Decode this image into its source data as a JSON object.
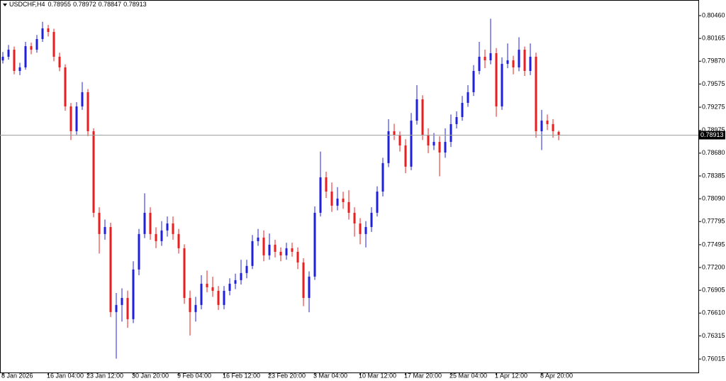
{
  "chart_data": {
    "type": "candlestick",
    "symbol": "USDCHF,H4",
    "up_color": "#1f1fe0",
    "down_color": "#ee1c1c",
    "ylim": [
      0.75841,
      0.80644
    ],
    "yticks": [
      {
        "value": 0.8046,
        "label": "0.80460"
      },
      {
        "value": 0.80165,
        "label": "0.80165"
      },
      {
        "value": 0.7987,
        "label": "0.79870"
      },
      {
        "value": 0.79575,
        "label": "0.79575"
      },
      {
        "value": 0.79275,
        "label": "0.79275"
      },
      {
        "value": 0.78975,
        "label": "0.78975"
      },
      {
        "value": 0.7868,
        "label": "0.78680"
      },
      {
        "value": 0.78385,
        "label": "0.78385"
      },
      {
        "value": 0.7809,
        "label": "0.78090"
      },
      {
        "value": 0.77795,
        "label": "0.77795"
      },
      {
        "value": 0.77495,
        "label": "0.77495"
      },
      {
        "value": 0.772,
        "label": "0.77200"
      },
      {
        "value": 0.76905,
        "label": "0.76905"
      },
      {
        "value": 0.7661,
        "label": "0.76610"
      },
      {
        "value": 0.76315,
        "label": "0.76315"
      },
      {
        "value": 0.76015,
        "label": "0.76015"
      }
    ],
    "categories": [
      "8 Jan 2026",
      null,
      null,
      null,
      null,
      null,
      null,
      null,
      "16 Jan 04:00",
      null,
      null,
      null,
      null,
      null,
      null,
      "23 Jan 12:00",
      null,
      null,
      null,
      null,
      null,
      null,
      null,
      "30 Jan 20:00",
      null,
      null,
      null,
      null,
      null,
      null,
      null,
      "9 Feb 04:00",
      null,
      null,
      null,
      null,
      null,
      null,
      null,
      "16 Feb 12:00",
      null,
      null,
      null,
      null,
      null,
      null,
      null,
      "23 Feb 20:00",
      null,
      null,
      null,
      null,
      null,
      null,
      null,
      "3 Mar 04:00",
      null,
      null,
      null,
      null,
      null,
      null,
      null,
      "10 Mar 12:00",
      null,
      null,
      null,
      null,
      null,
      null,
      null,
      "17 Mar 20:00",
      null,
      null,
      null,
      null,
      null,
      null,
      null,
      "25 Mar 04:00",
      null,
      null,
      null,
      null,
      null,
      null,
      null,
      "1 Apr 12:00",
      null,
      null,
      null,
      null,
      null,
      null,
      null,
      "8 Apr 20:00",
      null,
      null,
      null
    ],
    "candles": [
      [
        0.7988,
        0.7999,
        0.7984,
        0.79928
      ],
      [
        0.79928,
        0.8008,
        0.7989,
        0.80019
      ],
      [
        0.80019,
        0.8006,
        0.797,
        0.79744
      ],
      [
        0.79744,
        0.7985,
        0.7969,
        0.7979
      ],
      [
        0.7979,
        0.8012,
        0.7976,
        0.80065
      ],
      [
        0.80065,
        0.8011,
        0.7996,
        0.80019
      ],
      [
        0.80019,
        0.8021,
        0.7998,
        0.80157
      ],
      [
        0.80157,
        0.8038,
        0.8012,
        0.80295
      ],
      [
        0.80295,
        0.8034,
        0.8019,
        0.80249
      ],
      [
        0.80249,
        0.8029,
        0.7987,
        0.79928
      ],
      [
        0.79928,
        0.7998,
        0.7974,
        0.7979
      ],
      [
        0.7979,
        0.7983,
        0.7923,
        0.79285
      ],
      [
        0.79285,
        0.7933,
        0.7885,
        0.78964
      ],
      [
        0.78964,
        0.7934,
        0.7892,
        0.79285
      ],
      [
        0.79285,
        0.796,
        0.7924,
        0.79469
      ],
      [
        0.79469,
        0.7951,
        0.789,
        0.78964
      ],
      [
        0.78964,
        0.79,
        0.7785,
        0.77908
      ],
      [
        0.77908,
        0.7798,
        0.7738,
        0.77633
      ],
      [
        0.77633,
        0.7782,
        0.7756,
        0.77724
      ],
      [
        0.77724,
        0.7778,
        0.7656,
        0.76623
      ],
      [
        0.76623,
        0.7687,
        0.7602,
        0.76715
      ],
      [
        0.76715,
        0.7693,
        0.765,
        0.76806
      ],
      [
        0.76806,
        0.769,
        0.7642,
        0.76531
      ],
      [
        0.76531,
        0.7728,
        0.7648,
        0.77174
      ],
      [
        0.77174,
        0.777,
        0.771,
        0.77633
      ],
      [
        0.77633,
        0.7816,
        0.7758,
        0.77908
      ],
      [
        0.77908,
        0.7798,
        0.7756,
        0.77633
      ],
      [
        0.77633,
        0.7772,
        0.7745,
        0.77541
      ],
      [
        0.77541,
        0.778,
        0.7748,
        0.77679
      ],
      [
        0.77679,
        0.7786,
        0.776,
        0.7777
      ],
      [
        0.7777,
        0.7786,
        0.7756,
        0.77633
      ],
      [
        0.77633,
        0.777,
        0.7738,
        0.77449
      ],
      [
        0.77449,
        0.775,
        0.7673,
        0.76806
      ],
      [
        0.76806,
        0.769,
        0.7632,
        0.76623
      ],
      [
        0.76623,
        0.7682,
        0.765,
        0.76715
      ],
      [
        0.76715,
        0.771,
        0.7666,
        0.7699
      ],
      [
        0.7699,
        0.7716,
        0.7688,
        0.76944
      ],
      [
        0.76944,
        0.7708,
        0.7682,
        0.76898
      ],
      [
        0.76898,
        0.7696,
        0.7665,
        0.76715
      ],
      [
        0.76715,
        0.7696,
        0.7666,
        0.76898
      ],
      [
        0.76898,
        0.7706,
        0.7684,
        0.7699
      ],
      [
        0.7699,
        0.7712,
        0.7692,
        0.77036
      ],
      [
        0.77036,
        0.773,
        0.7698,
        0.77128
      ],
      [
        0.77128,
        0.773,
        0.7706,
        0.7722
      ],
      [
        0.7722,
        0.7762,
        0.7718,
        0.77541
      ],
      [
        0.77541,
        0.777,
        0.7748,
        0.77587
      ],
      [
        0.77587,
        0.7768,
        0.7728,
        0.77357
      ],
      [
        0.77357,
        0.7764,
        0.773,
        0.77495
      ],
      [
        0.77495,
        0.7756,
        0.7733,
        0.77403
      ],
      [
        0.77403,
        0.7746,
        0.7728,
        0.77357
      ],
      [
        0.77357,
        0.7752,
        0.773,
        0.77449
      ],
      [
        0.77449,
        0.7752,
        0.7734,
        0.77403
      ],
      [
        0.77403,
        0.7746,
        0.7718,
        0.77265
      ],
      [
        0.77265,
        0.7732,
        0.767,
        0.76806
      ],
      [
        0.76806,
        0.7715,
        0.7662,
        0.77082
      ],
      [
        0.77082,
        0.7799,
        0.7704,
        0.77908
      ],
      [
        0.77908,
        0.787,
        0.7786,
        0.78367
      ],
      [
        0.78367,
        0.7844,
        0.781,
        0.78183
      ],
      [
        0.78183,
        0.783,
        0.7792,
        0.78
      ],
      [
        0.78,
        0.7824,
        0.7794,
        0.78092
      ],
      [
        0.78092,
        0.7818,
        0.7796,
        0.78046
      ],
      [
        0.78046,
        0.782,
        0.7782,
        0.77908
      ],
      [
        0.77908,
        0.7798,
        0.776,
        0.7777
      ],
      [
        0.7777,
        0.7784,
        0.775,
        0.77633
      ],
      [
        0.77633,
        0.778,
        0.7746,
        0.77724
      ],
      [
        0.77724,
        0.7798,
        0.7766,
        0.77908
      ],
      [
        0.77908,
        0.7825,
        0.7786,
        0.78183
      ],
      [
        0.78183,
        0.7862,
        0.7812,
        0.78551
      ],
      [
        0.78551,
        0.7912,
        0.785,
        0.78964
      ],
      [
        0.78964,
        0.7906,
        0.7885,
        0.78918
      ],
      [
        0.78918,
        0.7896,
        0.787,
        0.7878
      ],
      [
        0.7878,
        0.7886,
        0.7842,
        0.78505
      ],
      [
        0.78505,
        0.792,
        0.7846,
        0.79101
      ],
      [
        0.79101,
        0.7956,
        0.7905,
        0.79377
      ],
      [
        0.79377,
        0.7943,
        0.7885,
        0.78918
      ],
      [
        0.78918,
        0.79,
        0.7868,
        0.7878
      ],
      [
        0.7878,
        0.7894,
        0.7872,
        0.78826
      ],
      [
        0.78826,
        0.789,
        0.7838,
        0.78688
      ],
      [
        0.78688,
        0.79,
        0.7862,
        0.78826
      ],
      [
        0.78826,
        0.7918,
        0.7876,
        0.79056
      ],
      [
        0.79056,
        0.7922,
        0.79,
        0.79147
      ],
      [
        0.79147,
        0.7942,
        0.791,
        0.79331
      ],
      [
        0.79331,
        0.7956,
        0.7928,
        0.79469
      ],
      [
        0.79469,
        0.7982,
        0.7942,
        0.79744
      ],
      [
        0.79744,
        0.8012,
        0.797,
        0.79928
      ],
      [
        0.79928,
        0.8002,
        0.7978,
        0.79882
      ],
      [
        0.79882,
        0.8042,
        0.7983,
        0.79974
      ],
      [
        0.79974,
        0.8004,
        0.7915,
        0.79285
      ],
      [
        0.79285,
        0.7992,
        0.7924,
        0.79836
      ],
      [
        0.79836,
        0.801,
        0.7978,
        0.79882
      ],
      [
        0.79882,
        0.7994,
        0.797,
        0.7979
      ],
      [
        0.7979,
        0.8018,
        0.7974,
        0.80019
      ],
      [
        0.80019,
        0.8006,
        0.7968,
        0.79744
      ],
      [
        0.79744,
        0.801,
        0.7969,
        0.79928
      ],
      [
        0.79928,
        0.7998,
        0.7888,
        0.78964
      ],
      [
        0.78964,
        0.7924,
        0.7872,
        0.79101
      ],
      [
        0.79101,
        0.7918,
        0.7898,
        0.79056
      ],
      [
        0.79056,
        0.7912,
        0.7888,
        0.78964
      ],
      [
        0.78955,
        0.78972,
        0.78847,
        0.78913
      ]
    ]
  }
}
